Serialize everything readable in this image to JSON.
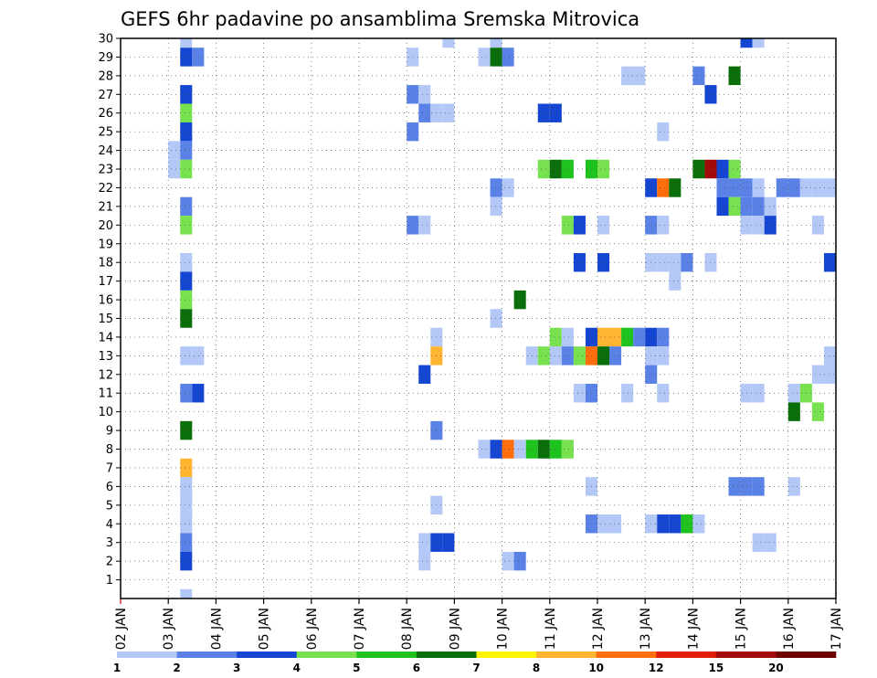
{
  "chart_data": {
    "type": "heatmap",
    "title": "GEFS 6hr padavine po ansamblima Sremska Mitrovica",
    "xlabel": "",
    "ylabel": "",
    "x_tick_labels": [
      "02 JAN",
      "03 JAN",
      "04 JAN",
      "05 JAN",
      "06 JAN",
      "07 JAN",
      "08 JAN",
      "09 JAN",
      "10 JAN",
      "11 JAN",
      "12 JAN",
      "13 JAN",
      "14 JAN",
      "15 JAN",
      "16 JAN",
      "17 JAN"
    ],
    "y_tick_labels": [
      "1",
      "2",
      "3",
      "4",
      "5",
      "6",
      "7",
      "8",
      "9",
      "10",
      "11",
      "12",
      "13",
      "14",
      "15",
      "16",
      "17",
      "18",
      "19",
      "20",
      "21",
      "22",
      "23",
      "24",
      "25",
      "26",
      "27",
      "28",
      "29",
      "30"
    ],
    "xlim_days": [
      2,
      17
    ],
    "ylim_members": [
      0,
      30
    ],
    "grid": true,
    "legend": {
      "placement": "bottom",
      "labels": [
        "1",
        "2",
        "3",
        "4",
        "5",
        "6",
        "7",
        "8",
        "10",
        "12",
        "15",
        "20"
      ],
      "colors": [
        "#b4c8f8",
        "#5a82e6",
        "#1446d2",
        "#78e150",
        "#1ec31e",
        "#0a6e0a",
        "#fff500",
        "#ffb432",
        "#ff6e0a",
        "#e11e0a",
        "#a00a0a",
        "#6e0000"
      ]
    },
    "cells": [
      {
        "day": 3.25,
        "member": 30,
        "level": 0
      },
      {
        "day": 3.25,
        "member": 29,
        "level": 2
      },
      {
        "day": 3.5,
        "member": 29,
        "level": 1
      },
      {
        "day": 3.25,
        "member": 27,
        "level": 2
      },
      {
        "day": 3.25,
        "member": 26,
        "level": 3
      },
      {
        "day": 3.25,
        "member": 25,
        "level": 2
      },
      {
        "day": 3.0,
        "member": 24,
        "level": 0
      },
      {
        "day": 3.25,
        "member": 24,
        "level": 1
      },
      {
        "day": 3.0,
        "member": 23,
        "level": 0
      },
      {
        "day": 3.25,
        "member": 23,
        "level": 3
      },
      {
        "day": 3.25,
        "member": 21,
        "level": 1
      },
      {
        "day": 3.25,
        "member": 20,
        "level": 3
      },
      {
        "day": 3.25,
        "member": 18,
        "level": 0
      },
      {
        "day": 3.25,
        "member": 17,
        "level": 2
      },
      {
        "day": 3.25,
        "member": 16,
        "level": 3
      },
      {
        "day": 3.25,
        "member": 15,
        "level": 5
      },
      {
        "day": 3.25,
        "member": 13,
        "level": 0
      },
      {
        "day": 3.5,
        "member": 13,
        "level": 0
      },
      {
        "day": 3.25,
        "member": 11,
        "level": 1
      },
      {
        "day": 3.5,
        "member": 11,
        "level": 2
      },
      {
        "day": 3.25,
        "member": 9,
        "level": 5
      },
      {
        "day": 3.25,
        "member": 7,
        "level": 7
      },
      {
        "day": 3.25,
        "member": 6,
        "level": 0
      },
      {
        "day": 3.25,
        "member": 5,
        "level": 0
      },
      {
        "day": 3.25,
        "member": 4,
        "level": 0
      },
      {
        "day": 3.25,
        "member": 3,
        "level": 1
      },
      {
        "day": 3.25,
        "member": 2,
        "level": 2
      },
      {
        "day": 3.25,
        "member": 0,
        "level": 0
      },
      {
        "day": 8.75,
        "member": 30,
        "level": 0
      },
      {
        "day": 8.0,
        "member": 29,
        "level": 0
      },
      {
        "day": 8.0,
        "member": 27,
        "level": 1
      },
      {
        "day": 8.25,
        "member": 27,
        "level": 0
      },
      {
        "day": 8.25,
        "member": 26,
        "level": 1
      },
      {
        "day": 8.5,
        "member": 26,
        "level": 0
      },
      {
        "day": 8.75,
        "member": 26,
        "level": 0
      },
      {
        "day": 8.0,
        "member": 25,
        "level": 1
      },
      {
        "day": 8.0,
        "member": 20,
        "level": 1
      },
      {
        "day": 8.25,
        "member": 20,
        "level": 0
      },
      {
        "day": 8.5,
        "member": 14,
        "level": 0
      },
      {
        "day": 8.5,
        "member": 13,
        "level": 7
      },
      {
        "day": 8.25,
        "member": 12,
        "level": 2
      },
      {
        "day": 8.5,
        "member": 9,
        "level": 1
      },
      {
        "day": 8.5,
        "member": 5,
        "level": 0
      },
      {
        "day": 8.25,
        "member": 3,
        "level": 0
      },
      {
        "day": 8.5,
        "member": 3,
        "level": 2
      },
      {
        "day": 8.75,
        "member": 3,
        "level": 2
      },
      {
        "day": 8.25,
        "member": 2,
        "level": 0
      },
      {
        "day": 9.75,
        "member": 30,
        "level": 0
      },
      {
        "day": 9.5,
        "member": 29,
        "level": 0
      },
      {
        "day": 9.75,
        "member": 29,
        "level": 5
      },
      {
        "day": 10.0,
        "member": 29,
        "level": 1
      },
      {
        "day": 9.75,
        "member": 22,
        "level": 1
      },
      {
        "day": 10.0,
        "member": 22,
        "level": 0
      },
      {
        "day": 9.75,
        "member": 21,
        "level": 0
      },
      {
        "day": 10.25,
        "member": 16,
        "level": 5
      },
      {
        "day": 9.75,
        "member": 15,
        "level": 0
      },
      {
        "day": 9.5,
        "member": 8,
        "level": 0
      },
      {
        "day": 9.75,
        "member": 8,
        "level": 2
      },
      {
        "day": 10.0,
        "member": 8,
        "level": 8
      },
      {
        "day": 10.25,
        "member": 8,
        "level": 0
      },
      {
        "day": 10.5,
        "member": 8,
        "level": 4
      },
      {
        "day": 10.75,
        "member": 8,
        "level": 5
      },
      {
        "day": 11.0,
        "member": 8,
        "level": 4
      },
      {
        "day": 11.25,
        "member": 8,
        "level": 3
      },
      {
        "day": 10.0,
        "member": 2,
        "level": 0
      },
      {
        "day": 10.25,
        "member": 2,
        "level": 1
      },
      {
        "day": 10.75,
        "member": 26,
        "level": 2
      },
      {
        "day": 11.0,
        "member": 26,
        "level": 2
      },
      {
        "day": 10.75,
        "member": 23,
        "level": 3
      },
      {
        "day": 11.0,
        "member": 23,
        "level": 5
      },
      {
        "day": 11.25,
        "member": 23,
        "level": 4
      },
      {
        "day": 11.75,
        "member": 23,
        "level": 4
      },
      {
        "day": 12.0,
        "member": 23,
        "level": 3
      },
      {
        "day": 11.25,
        "member": 20,
        "level": 3
      },
      {
        "day": 11.5,
        "member": 20,
        "level": 2
      },
      {
        "day": 12.0,
        "member": 20,
        "level": 0
      },
      {
        "day": 11.5,
        "member": 18,
        "level": 2
      },
      {
        "day": 12.0,
        "member": 18,
        "level": 2
      },
      {
        "day": 11.0,
        "member": 14,
        "level": 3
      },
      {
        "day": 11.25,
        "member": 14,
        "level": 0
      },
      {
        "day": 11.75,
        "member": 14,
        "level": 2
      },
      {
        "day": 12.0,
        "member": 14,
        "level": 7
      },
      {
        "day": 12.25,
        "member": 14,
        "level": 7
      },
      {
        "day": 12.5,
        "member": 14,
        "level": 4
      },
      {
        "day": 12.75,
        "member": 14,
        "level": 1
      },
      {
        "day": 13.0,
        "member": 14,
        "level": 2
      },
      {
        "day": 13.25,
        "member": 14,
        "level": 1
      },
      {
        "day": 10.5,
        "member": 13,
        "level": 0
      },
      {
        "day": 10.75,
        "member": 13,
        "level": 3
      },
      {
        "day": 11.0,
        "member": 13,
        "level": 0
      },
      {
        "day": 11.25,
        "member": 13,
        "level": 1
      },
      {
        "day": 11.5,
        "member": 13,
        "level": 3
      },
      {
        "day": 11.75,
        "member": 13,
        "level": 8
      },
      {
        "day": 12.0,
        "member": 13,
        "level": 5
      },
      {
        "day": 12.25,
        "member": 13,
        "level": 1
      },
      {
        "day": 11.5,
        "member": 11,
        "level": 0
      },
      {
        "day": 11.75,
        "member": 11,
        "level": 1
      },
      {
        "day": 12.5,
        "member": 11,
        "level": 0
      },
      {
        "day": 11.75,
        "member": 6,
        "level": 0
      },
      {
        "day": 11.75,
        "member": 4,
        "level": 1
      },
      {
        "day": 12.0,
        "member": 4,
        "level": 0
      },
      {
        "day": 12.25,
        "member": 4,
        "level": 0
      },
      {
        "day": 12.5,
        "member": 28,
        "level": 0
      },
      {
        "day": 12.75,
        "member": 28,
        "level": 0
      },
      {
        "day": 13.25,
        "member": 25,
        "level": 0
      },
      {
        "day": 13.0,
        "member": 22,
        "level": 2
      },
      {
        "day": 13.25,
        "member": 22,
        "level": 8
      },
      {
        "day": 13.5,
        "member": 22,
        "level": 5
      },
      {
        "day": 13.0,
        "member": 20,
        "level": 1
      },
      {
        "day": 13.25,
        "member": 20,
        "level": 0
      },
      {
        "day": 13.0,
        "member": 18,
        "level": 0
      },
      {
        "day": 13.25,
        "member": 18,
        "level": 0
      },
      {
        "day": 13.5,
        "member": 18,
        "level": 0
      },
      {
        "day": 13.75,
        "member": 18,
        "level": 1
      },
      {
        "day": 13.5,
        "member": 17,
        "level": 0
      },
      {
        "day": 13.0,
        "member": 13,
        "level": 0
      },
      {
        "day": 13.25,
        "member": 13,
        "level": 0
      },
      {
        "day": 13.0,
        "member": 12,
        "level": 1
      },
      {
        "day": 13.25,
        "member": 11,
        "level": 0
      },
      {
        "day": 13.0,
        "member": 4,
        "level": 0
      },
      {
        "day": 13.25,
        "member": 4,
        "level": 2
      },
      {
        "day": 13.5,
        "member": 4,
        "level": 2
      },
      {
        "day": 13.75,
        "member": 4,
        "level": 4
      },
      {
        "day": 14.0,
        "member": 4,
        "level": 0
      },
      {
        "day": 14.0,
        "member": 28,
        "level": 1
      },
      {
        "day": 14.25,
        "member": 27,
        "level": 2
      },
      {
        "day": 14.0,
        "member": 23,
        "level": 5
      },
      {
        "day": 14.25,
        "member": 23,
        "level": 10
      },
      {
        "day": 14.5,
        "member": 23,
        "level": 2
      },
      {
        "day": 14.75,
        "member": 23,
        "level": 3
      },
      {
        "day": 14.5,
        "member": 22,
        "level": 1
      },
      {
        "day": 14.75,
        "member": 22,
        "level": 1
      },
      {
        "day": 15.0,
        "member": 22,
        "level": 1
      },
      {
        "day": 14.5,
        "member": 21,
        "level": 2
      },
      {
        "day": 14.75,
        "member": 21,
        "level": 3
      },
      {
        "day": 15.0,
        "member": 21,
        "level": 1
      },
      {
        "day": 14.25,
        "member": 18,
        "level": 0
      },
      {
        "day": 14.75,
        "member": 28,
        "level": 5
      },
      {
        "day": 15.0,
        "member": 30,
        "level": 2
      },
      {
        "day": 15.25,
        "member": 30,
        "level": 0
      },
      {
        "day": 15.25,
        "member": 22,
        "level": 0
      },
      {
        "day": 15.25,
        "member": 21,
        "level": 1
      },
      {
        "day": 15.5,
        "member": 21,
        "level": 0
      },
      {
        "day": 15.0,
        "member": 20,
        "level": 0
      },
      {
        "day": 15.25,
        "member": 20,
        "level": 0
      },
      {
        "day": 15.5,
        "member": 20,
        "level": 2
      },
      {
        "day": 15.0,
        "member": 11,
        "level": 0
      },
      {
        "day": 15.25,
        "member": 11,
        "level": 0
      },
      {
        "day": 14.75,
        "member": 6,
        "level": 1
      },
      {
        "day": 15.0,
        "member": 6,
        "level": 1
      },
      {
        "day": 15.25,
        "member": 6,
        "level": 1
      },
      {
        "day": 15.25,
        "member": 3,
        "level": 0
      },
      {
        "day": 15.5,
        "member": 3,
        "level": 0
      },
      {
        "day": 15.75,
        "member": 22,
        "level": 1
      },
      {
        "day": 16.0,
        "member": 22,
        "level": 1
      },
      {
        "day": 16.25,
        "member": 22,
        "level": 0
      },
      {
        "day": 16.5,
        "member": 22,
        "level": 0
      },
      {
        "day": 16.75,
        "member": 22,
        "level": 0
      },
      {
        "day": 16.5,
        "member": 20,
        "level": 0
      },
      {
        "day": 16.75,
        "member": 18,
        "level": 2
      },
      {
        "day": 16.75,
        "member": 13,
        "level": 0
      },
      {
        "day": 16.5,
        "member": 12,
        "level": 0
      },
      {
        "day": 16.75,
        "member": 12,
        "level": 0
      },
      {
        "day": 16.0,
        "member": 11,
        "level": 0
      },
      {
        "day": 16.25,
        "member": 11,
        "level": 3
      },
      {
        "day": 16.0,
        "member": 10,
        "level": 5
      },
      {
        "day": 16.5,
        "member": 10,
        "level": 3
      },
      {
        "day": 16.0,
        "member": 6,
        "level": 0
      }
    ]
  }
}
